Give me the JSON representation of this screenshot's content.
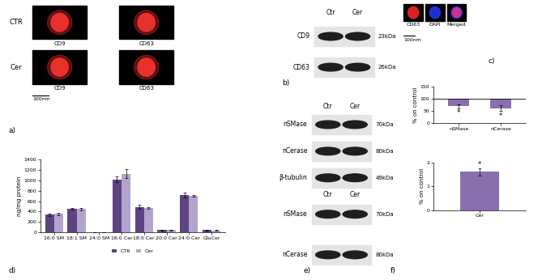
{
  "chart_data": [
    {
      "type": "bar",
      "categories": [
        "16:0 SM",
        "18:1 SM",
        "24:0 SM",
        "16:0 Cer",
        "18:0 Cer",
        "20:0 Cer",
        "24:0 Cer",
        "GluCer"
      ],
      "y_label": "ng/mg protein",
      "ylim": [
        0,
        1400
      ],
      "yticks": [
        0,
        200,
        400,
        600,
        800,
        1000,
        1200,
        1400
      ],
      "legend": "bottom",
      "series": [
        {
          "name": "CTR",
          "color": "#5e4382",
          "values": [
            340,
            450,
            0,
            1020,
            490,
            45,
            715,
            45
          ],
          "errors": [
            25,
            15,
            0,
            60,
            35,
            6,
            45,
            8
          ]
        },
        {
          "name": "Cer",
          "color": "#b2a3cf",
          "values": [
            355,
            450,
            0,
            1130,
            470,
            45,
            705,
            40
          ],
          "errors": [
            20,
            20,
            0,
            85,
            10,
            5,
            20,
            6
          ]
        }
      ]
    },
    {
      "type": "bar",
      "categories": [
        "nSMase",
        "nCerase"
      ],
      "values": [
        70,
        62
      ],
      "errors": [
        8,
        12
      ],
      "baseline": 100,
      "y_label": "% on control",
      "ylim": [
        0,
        150
      ],
      "yticks": [
        0,
        50,
        100,
        150
      ],
      "color": "#8a6fae",
      "annotations": [
        "*",
        "*"
      ]
    },
    {
      "type": "bar",
      "categories": [
        "Cer"
      ],
      "values": [
        1.6
      ],
      "errors": [
        0.15
      ],
      "y_label": "% on control",
      "ylim": [
        0,
        2
      ],
      "yticks": [
        0,
        1,
        2
      ],
      "color": "#8a6fae",
      "annotations": [
        "*"
      ]
    }
  ],
  "panels": {
    "a": {
      "rows": [
        "CTR",
        "Cer"
      ],
      "images": [
        [
          "CD9",
          "CD63"
        ],
        [
          "CD9",
          "CD63"
        ]
      ],
      "scale_bar": "100nm"
    },
    "b": {
      "lanes": [
        "Ctr",
        "Cer"
      ],
      "bands": [
        {
          "name": "CD9",
          "size": "23kDa"
        },
        {
          "name": "CD63",
          "size": "26kDa"
        }
      ]
    },
    "c": {
      "channels": [
        "CD63",
        "DAPI",
        "Merged"
      ],
      "scale_bar": "100nm"
    },
    "e": {
      "blots": [
        {
          "lanes": [
            "Ctr",
            "Cer"
          ],
          "bands": [
            {
              "name": "nSMase",
              "size": "70kDa"
            },
            {
              "name": "nCerase",
              "size": "80kDa"
            },
            {
              "name": "β-tubulin",
              "size": "49kDa"
            }
          ]
        },
        {
          "lanes": [
            "Ctr",
            "Cer"
          ],
          "bands": [
            {
              "name": "nSMase",
              "size": "70kDa"
            },
            {
              "name": "nCerase",
              "size": "80kDa"
            }
          ]
        }
      ]
    }
  },
  "panel_labels": [
    "a)",
    "b)",
    "c)",
    "d)",
    "e)",
    "f)"
  ]
}
